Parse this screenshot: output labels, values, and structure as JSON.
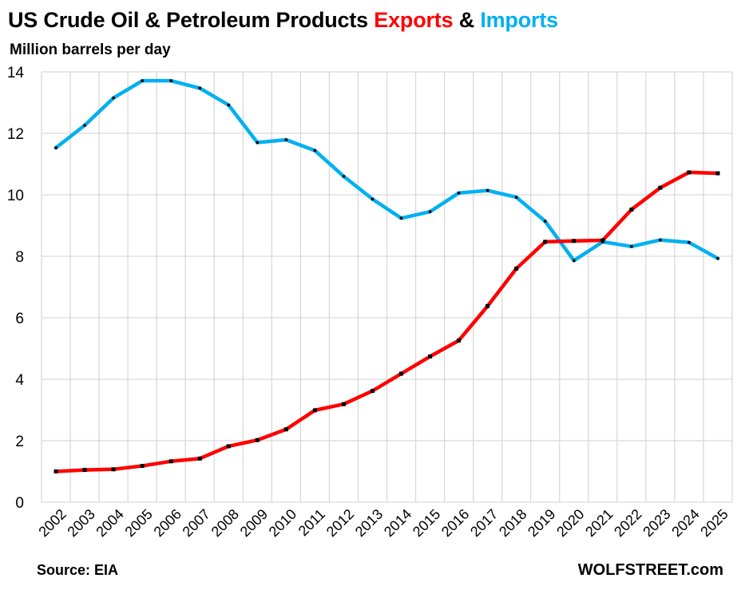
{
  "header": {
    "title_main": "US Crude Oil & Petroleum Products ",
    "title_exports": "Exports",
    "title_and": " & ",
    "title_imports": "Imports",
    "subtitle": "Million barrels per day"
  },
  "footer": {
    "source": "Source: EIA",
    "brand": "WOLFSTREET.com"
  },
  "colors": {
    "exports": "#ff0000",
    "imports": "#00b0f0",
    "grid": "#d9d9d9",
    "marker": "#000000"
  },
  "chart_data": {
    "type": "line",
    "title": "US Crude Oil & Petroleum Products Exports & Imports",
    "ylabel": "Million barrels per day",
    "xlabel": "",
    "ylim": [
      0,
      14
    ],
    "yticks": [
      "0",
      "2",
      "4",
      "6",
      "8",
      "10",
      "12",
      "14"
    ],
    "grid": true,
    "categories": [
      "2002",
      "2003",
      "2004",
      "2005",
      "2006",
      "2007",
      "2008",
      "2009",
      "2010",
      "2011",
      "2012",
      "2013",
      "2014",
      "2015",
      "2016",
      "2017",
      "2018",
      "2019",
      "2020",
      "2021",
      "2022",
      "2023",
      "2024",
      "2025"
    ],
    "series": [
      {
        "name": "Exports",
        "values": [
          1.0,
          1.05,
          1.07,
          1.18,
          1.33,
          1.42,
          1.82,
          2.02,
          2.37,
          2.99,
          3.19,
          3.62,
          4.18,
          4.74,
          5.26,
          6.38,
          7.6,
          8.47,
          8.5,
          8.52,
          9.52,
          10.23,
          10.73,
          10.7
        ]
      },
      {
        "name": "Imports",
        "values": [
          11.53,
          12.26,
          13.15,
          13.71,
          13.71,
          13.47,
          12.92,
          11.7,
          11.79,
          11.44,
          10.6,
          9.86,
          9.24,
          9.45,
          10.06,
          10.14,
          9.92,
          9.14,
          7.86,
          8.47,
          8.32,
          8.53,
          8.45,
          7.93
        ]
      }
    ]
  }
}
